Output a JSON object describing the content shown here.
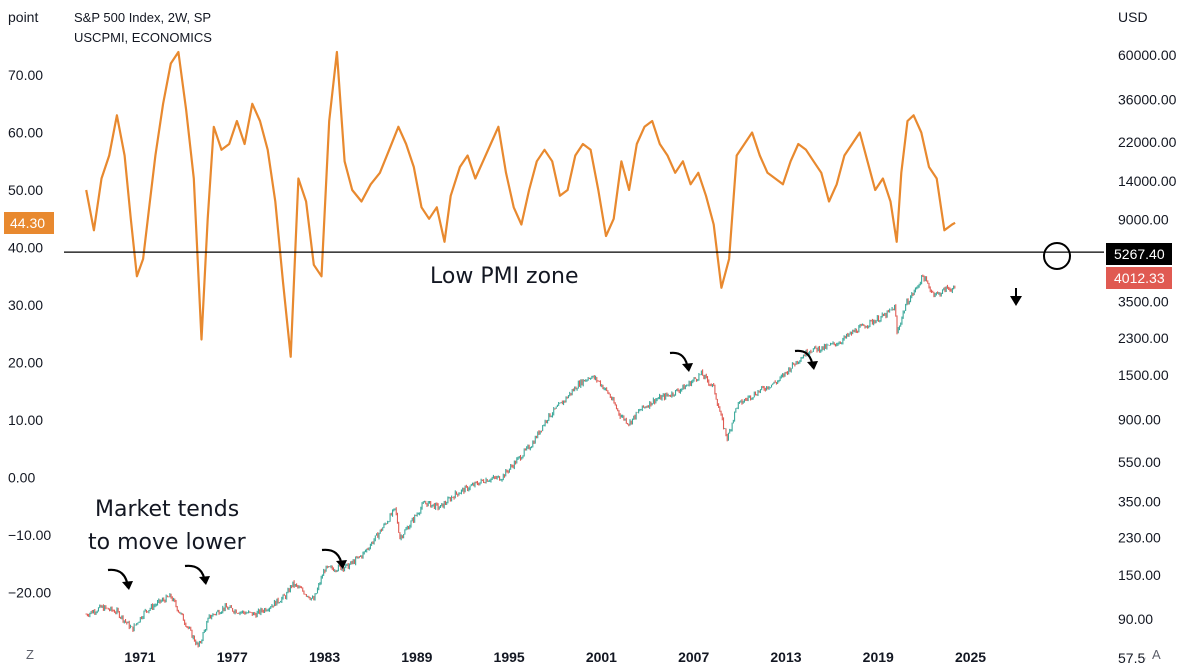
{
  "legend": {
    "line1": "S&P 500 Index, 2W, SP",
    "line2": "USCPMI, ECONOMICS"
  },
  "left_axis": {
    "unit": "point",
    "ticks": [
      {
        "label": "70.00",
        "value": 70
      },
      {
        "label": "60.00",
        "value": 60
      },
      {
        "label": "50.00",
        "value": 50
      },
      {
        "label": "40.00",
        "value": 40
      },
      {
        "label": "30.00",
        "value": 30
      },
      {
        "label": "20.00",
        "value": 20
      },
      {
        "label": "10.00",
        "value": 10
      },
      {
        "label": "0.00",
        "value": 0
      },
      {
        "label": "−10.00",
        "value": -10
      },
      {
        "label": "−20.00",
        "value": -20
      }
    ]
  },
  "right_axis": {
    "unit": "USD",
    "scale": "log",
    "ticks": [
      {
        "label": "60000.00",
        "value": 60000
      },
      {
        "label": "36000.00",
        "value": 36000
      },
      {
        "label": "22000.00",
        "value": 22000
      },
      {
        "label": "14000.00",
        "value": 14000
      },
      {
        "label": "9000.00",
        "value": 9000
      },
      {
        "label": "3500.00",
        "value": 3500
      },
      {
        "label": "2300.00",
        "value": 2300
      },
      {
        "label": "1500.00",
        "value": 1500
      },
      {
        "label": "900.00",
        "value": 900
      },
      {
        "label": "550.00",
        "value": 550
      },
      {
        "label": "350.00",
        "value": 350
      },
      {
        "label": "230.00",
        "value": 230
      },
      {
        "label": "150.00",
        "value": 150
      },
      {
        "label": "90.00",
        "value": 90
      },
      {
        "label": "57.50",
        "value": 57.5
      }
    ]
  },
  "x_axis": {
    "ticks": [
      {
        "label": "1971",
        "value": 1971
      },
      {
        "label": "1977",
        "value": 1977
      },
      {
        "label": "1983",
        "value": 1983
      },
      {
        "label": "1989",
        "value": 1989
      },
      {
        "label": "1995",
        "value": 1995
      },
      {
        "label": "2001",
        "value": 2001
      },
      {
        "label": "2007",
        "value": 2007
      },
      {
        "label": "2013",
        "value": 2013
      },
      {
        "label": "2019",
        "value": 2019
      },
      {
        "label": "2025",
        "value": 2025
      }
    ]
  },
  "badges": {
    "pmi_last": {
      "label": "44.30",
      "color": "#e8892f"
    },
    "line_level": {
      "label": "5267.40",
      "color": "#000000"
    },
    "spx_last": {
      "label": "4012.33",
      "color": "#e05a52"
    }
  },
  "annotations": {
    "low_pmi_zone": "Low PMI zone",
    "market_line1": "Market tends",
    "market_line2": "to move lower"
  },
  "buttons": {
    "left": "Z",
    "right": "A"
  },
  "colors": {
    "pmi": "#e8892f",
    "spx_up": "#3aa89a",
    "spx_down": "#e05a52",
    "line": "#000000"
  },
  "chart_data": {
    "type": "line",
    "x_unit": "year",
    "horizontal_line": {
      "pmi_value": 39.2,
      "price_value": 5267.4
    },
    "series": [
      {
        "name": "USCPMI, ECONOMICS",
        "axis": "left",
        "x": [
          1967.5,
          1968.0,
          1968.5,
          1969.0,
          1969.5,
          1970.0,
          1970.4,
          1970.8,
          1971.2,
          1971.6,
          1972.0,
          1972.5,
          1973.0,
          1973.5,
          1974.0,
          1974.5,
          1975.0,
          1975.4,
          1975.8,
          1976.3,
          1976.8,
          1977.3,
          1977.8,
          1978.3,
          1978.8,
          1979.3,
          1979.8,
          1980.3,
          1980.8,
          1981.3,
          1981.8,
          1982.3,
          1982.8,
          1983.3,
          1983.8,
          1984.3,
          1984.8,
          1985.4,
          1986.0,
          1986.6,
          1987.2,
          1987.8,
          1988.3,
          1988.8,
          1989.3,
          1989.8,
          1990.3,
          1990.8,
          1991.2,
          1991.8,
          1992.3,
          1992.8,
          1993.3,
          1993.8,
          1994.3,
          1994.8,
          1995.3,
          1995.8,
          1996.3,
          1996.8,
          1997.3,
          1997.8,
          1998.3,
          1998.8,
          1999.3,
          1999.8,
          2000.3,
          2000.8,
          2001.3,
          2001.8,
          2002.3,
          2002.8,
          2003.3,
          2003.8,
          2004.3,
          2004.8,
          2005.3,
          2005.8,
          2006.3,
          2006.8,
          2007.3,
          2007.8,
          2008.3,
          2008.8,
          2009.3,
          2009.8,
          2010.3,
          2010.8,
          2011.3,
          2011.8,
          2012.3,
          2012.8,
          2013.3,
          2013.8,
          2014.3,
          2014.8,
          2015.3,
          2015.8,
          2016.3,
          2016.8,
          2017.3,
          2017.8,
          2018.3,
          2018.8,
          2019.3,
          2019.8,
          2020.2,
          2020.5,
          2020.9,
          2021.3,
          2021.8,
          2022.3,
          2022.8,
          2023.3,
          2023.8,
          2024.0
        ],
        "values": [
          50,
          43,
          52,
          56,
          63,
          56,
          45,
          35,
          38,
          47,
          56,
          65,
          72,
          74,
          64,
          52,
          24,
          45,
          61,
          57,
          58,
          62,
          58,
          65,
          62,
          57,
          48,
          34,
          21,
          52,
          48,
          37,
          35,
          62,
          74,
          55,
          50,
          48,
          51,
          53,
          57,
          61,
          58,
          54,
          47,
          45,
          47,
          41,
          49,
          54,
          56,
          52,
          55,
          58,
          61,
          53,
          47,
          44,
          50,
          55,
          57,
          55,
          49,
          50,
          56,
          58,
          57,
          50,
          42,
          45,
          55,
          50,
          58,
          61,
          62,
          58,
          56,
          53,
          55,
          51,
          53,
          49,
          44,
          33,
          38,
          56,
          58,
          60,
          56,
          53,
          52,
          51,
          55,
          58,
          57,
          55,
          53,
          48,
          51,
          56,
          58,
          60,
          55,
          50,
          52,
          48,
          41,
          53,
          62,
          63,
          60,
          54,
          52,
          43,
          44,
          44.3
        ]
      },
      {
        "name": "S&P 500 Index, 2W, SP",
        "axis": "right",
        "x": [
          1967.5,
          1968.5,
          1969.5,
          1970.5,
          1971.3,
          1972.3,
          1973.0,
          1974.0,
          1974.8,
          1975.5,
          1976.5,
          1977.5,
          1978.5,
          1979.5,
          1980.5,
          1980.9,
          1981.5,
          1982.3,
          1983.0,
          1983.8,
          1984.5,
          1985.5,
          1986.5,
          1987.6,
          1987.9,
          1988.5,
          1989.5,
          1990.5,
          1991.5,
          1992.5,
          1993.5,
          1994.5,
          1995.5,
          1996.5,
          1997.5,
          1998.5,
          1999.5,
          2000.3,
          2000.8,
          2001.5,
          2002.2,
          2002.8,
          2003.5,
          2004.5,
          2005.5,
          2006.5,
          2007.5,
          2008.3,
          2008.9,
          2009.2,
          2009.8,
          2010.5,
          2011.5,
          2012.5,
          2013.5,
          2014.5,
          2015.5,
          2016.5,
          2017.5,
          2018.5,
          2019.5,
          2020.1,
          2020.2,
          2020.8,
          2021.5,
          2021.9,
          2022.5,
          2022.9,
          2023.5,
          2024.0
        ],
        "values": [
          95,
          103,
          98,
          80,
          98,
          110,
          117,
          85,
          65,
          92,
          103,
          98,
          95,
          105,
          118,
          135,
          126,
          112,
          160,
          162,
          165,
          190,
          240,
          320,
          230,
          265,
          345,
          325,
          380,
          415,
          450,
          460,
          560,
          680,
          920,
          1100,
          1350,
          1480,
          1400,
          1200,
          950,
          860,
          1000,
          1130,
          1200,
          1320,
          1520,
          1300,
          850,
          720,
          1050,
          1150,
          1280,
          1400,
          1700,
          2000,
          2050,
          2200,
          2500,
          2750,
          3000,
          3300,
          2400,
          3400,
          4100,
          4700,
          3900,
          3800,
          4100,
          4012.33
        ]
      }
    ]
  }
}
